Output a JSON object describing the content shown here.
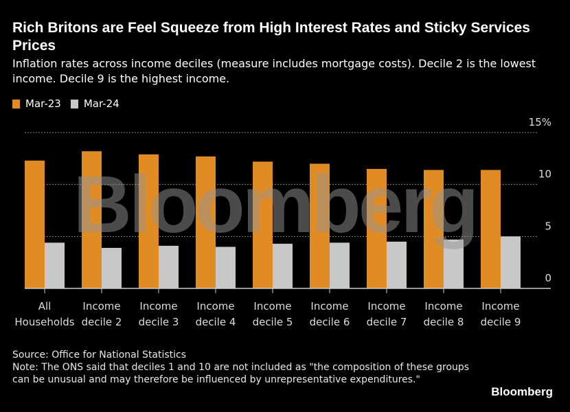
{
  "title": "Rich Britons are Feel Squeeze from High Interest Rates and Sticky Services Prices",
  "subtitle": "Inflation rates across income deciles (measure includes mortgage costs). Decile 2 is the lowest income. Decile 9 is the highest income.",
  "source": "Source: Office for National Statistics",
  "note": "Note: The ONS said that deciles 1 and 10 are not included as \"the composition of these groups can be unusual and may therefore be influenced by unrepresentative expenditures.\"",
  "brand": "Bloomberg",
  "watermark": "Bloomberg",
  "chart_data": {
    "type": "bar",
    "categories": [
      [
        "All",
        "Households"
      ],
      [
        "Income",
        "decile 2"
      ],
      [
        "Income",
        "decile 3"
      ],
      [
        "Income",
        "decile 4"
      ],
      [
        "Income",
        "decile 5"
      ],
      [
        "Income",
        "decile 6"
      ],
      [
        "Income",
        "decile 7"
      ],
      [
        "Income",
        "decile 8"
      ],
      [
        "Income",
        "decile 9"
      ]
    ],
    "series": [
      {
        "name": "Mar-23",
        "color": "#e08b24",
        "values": [
          12.3,
          13.2,
          12.9,
          12.7,
          12.2,
          12.0,
          11.5,
          11.4,
          11.4
        ]
      },
      {
        "name": "Mar-24",
        "color": "#c8c8c8",
        "values": [
          4.4,
          3.9,
          4.1,
          4.0,
          4.3,
          4.4,
          4.5,
          4.7,
          5.0
        ]
      }
    ],
    "ylim": [
      0,
      15
    ],
    "yticks": [
      0,
      5,
      10,
      15
    ],
    "ytick_labels": [
      "0",
      "5",
      "10",
      "15%"
    ],
    "grid": true,
    "legend": "top-left",
    "xlabel": "",
    "ylabel": ""
  }
}
